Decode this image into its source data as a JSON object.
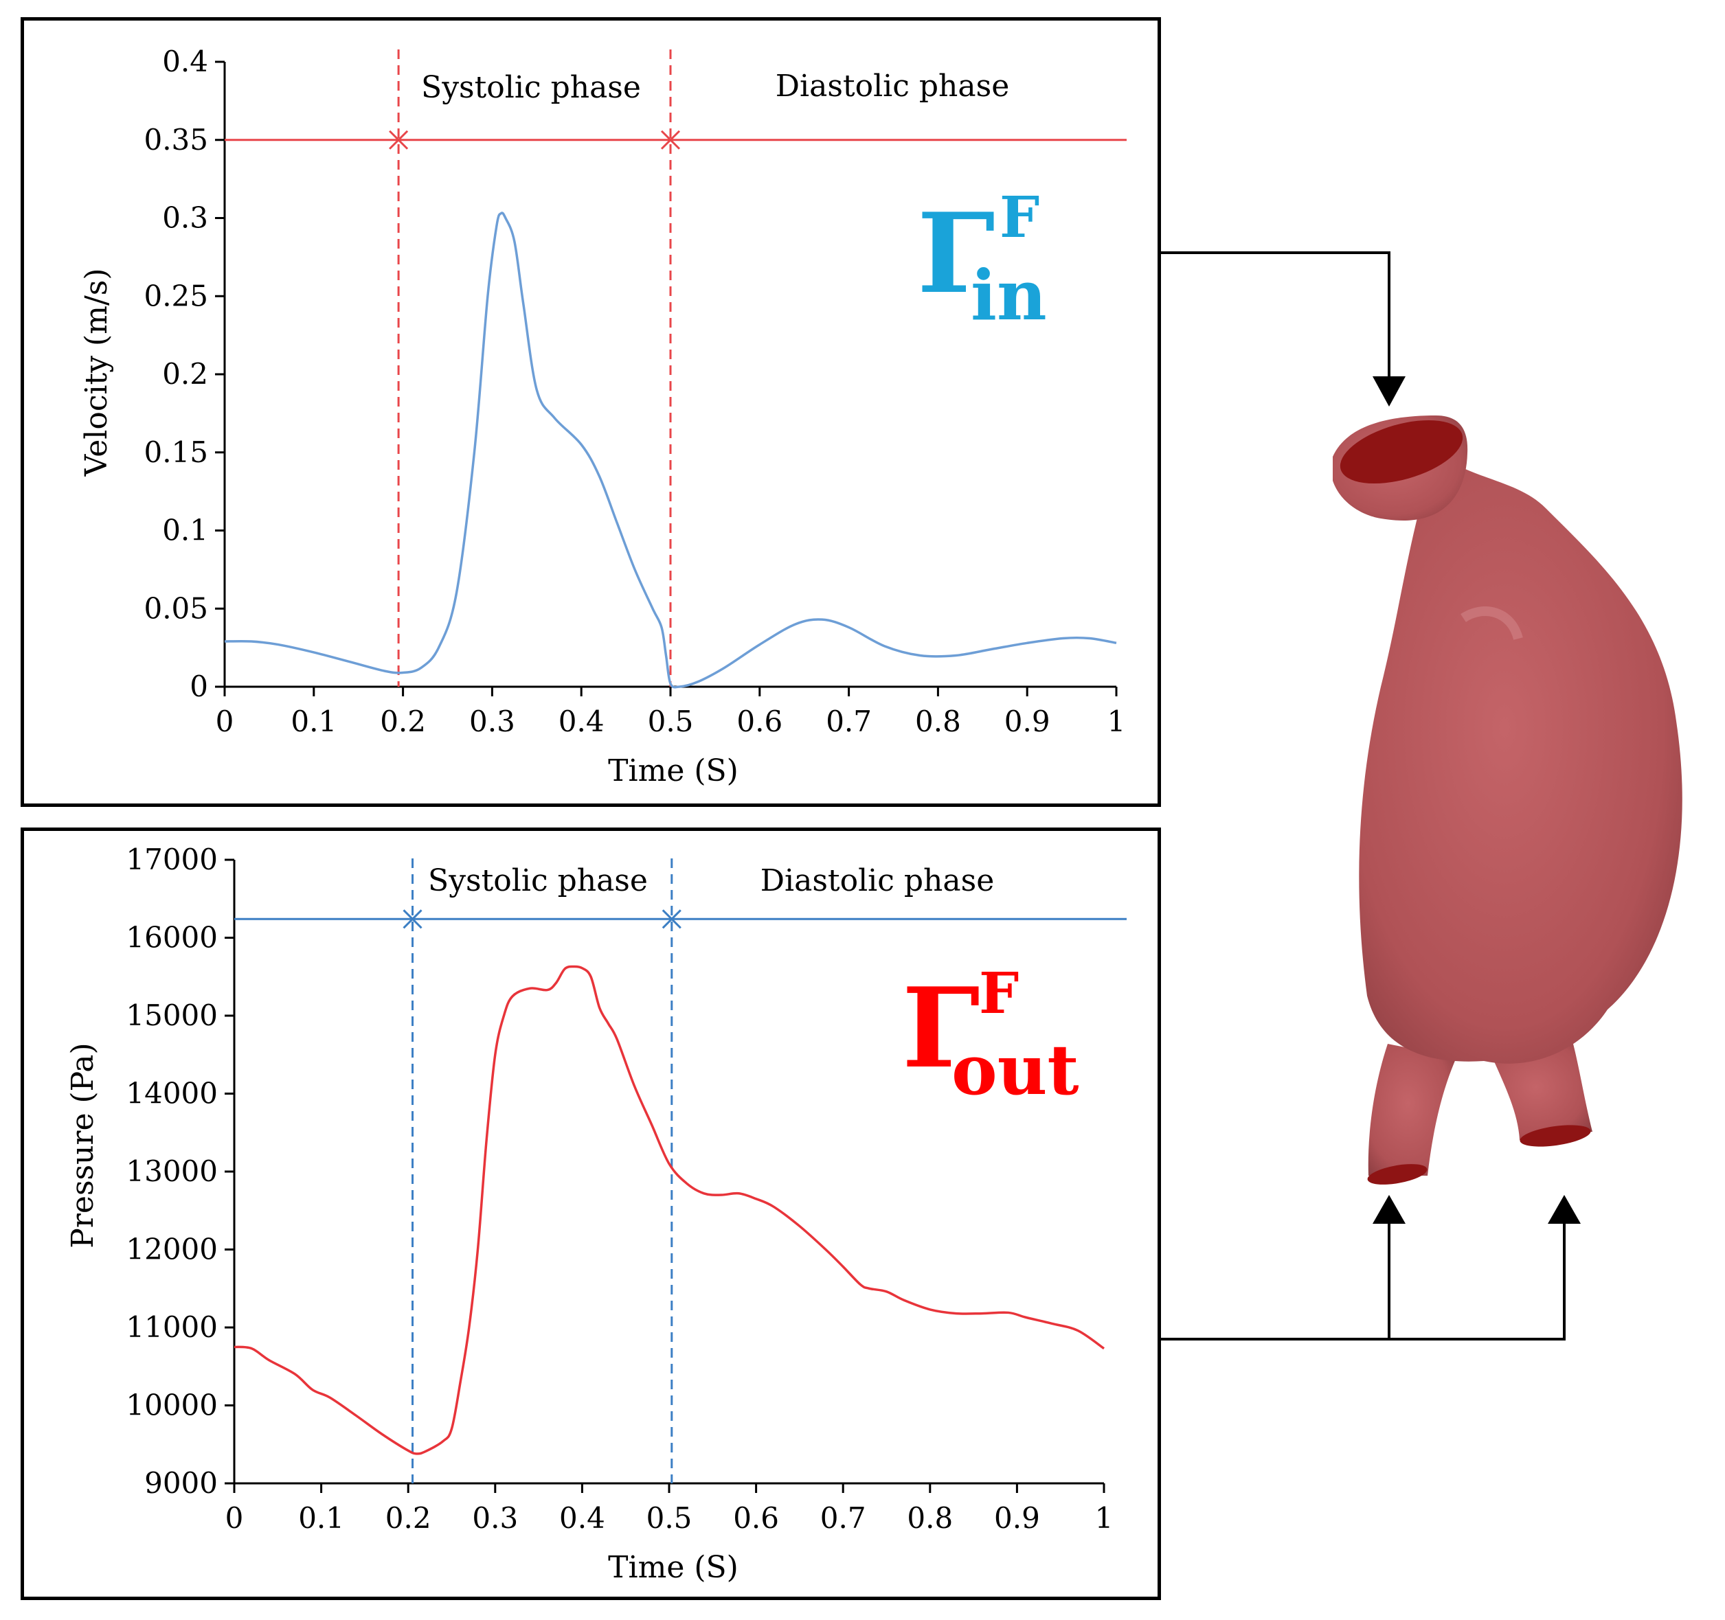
{
  "colors": {
    "velocity_line": "#6d9ed6",
    "velocity_phase": "#e8464a",
    "pressure_line": "#e8343a",
    "pressure_phase": "#3c7fc4",
    "inlet_symbol": "#1aa3d9",
    "outlet_symbol": "#ff0000",
    "aorta_body": "#b8585c",
    "aorta_opening": "#8e1414"
  },
  "labels": {
    "inlet_main": "Γ",
    "inlet_sup": "F",
    "inlet_sub": "in",
    "outlet_main": "Γ",
    "outlet_sup": "F",
    "outlet_sub": "out"
  },
  "chart_data": [
    {
      "type": "line",
      "title": "",
      "xlabel": "Time (S)",
      "ylabel": "Velocity (m/s)",
      "xlim": [
        0,
        1
      ],
      "ylim": [
        0,
        0.4
      ],
      "x_ticks": [
        0,
        0.1,
        0.2,
        0.3,
        0.4,
        0.5,
        0.6,
        0.7,
        0.8,
        0.9,
        1
      ],
      "x_tick_labels": [
        "0",
        "0.1",
        "0.2",
        "0.3",
        "0.4",
        "0.5",
        "0.6",
        "0.7",
        "0.8",
        "0.9",
        "1"
      ],
      "y_ticks": [
        0,
        0.05,
        0.1,
        0.15,
        0.2,
        0.25,
        0.3,
        0.35,
        0.4
      ],
      "y_tick_labels": [
        "0",
        "0.05",
        "0.1",
        "0.15",
        "0.2",
        "0.25",
        "0.3",
        "0.35",
        "0.4"
      ],
      "phase_bounds": [
        0.195,
        0.5
      ],
      "phase_level": 0.35,
      "phase_labels": [
        "Systolic phase",
        "Diastolic phase"
      ],
      "grid": false,
      "series": [
        {
          "x": [
            0,
            0.03,
            0.06,
            0.1,
            0.14,
            0.18,
            0.2,
            0.22,
            0.24,
            0.26,
            0.28,
            0.295,
            0.305,
            0.31,
            0.315,
            0.325,
            0.335,
            0.35,
            0.37,
            0.4,
            0.42,
            0.44,
            0.46,
            0.48,
            0.49,
            0.495,
            0.5,
            0.51,
            0.53,
            0.56,
            0.6,
            0.64,
            0.67,
            0.7,
            0.74,
            0.78,
            0.82,
            0.86,
            0.9,
            0.94,
            0.97,
            1
          ],
          "y": [
            0.029,
            0.029,
            0.027,
            0.022,
            0.016,
            0.01,
            0.009,
            0.012,
            0.025,
            0.06,
            0.15,
            0.25,
            0.295,
            0.303,
            0.3,
            0.285,
            0.245,
            0.19,
            0.172,
            0.155,
            0.135,
            0.105,
            0.075,
            0.05,
            0.038,
            0.02,
            0.002,
            0.0,
            0.003,
            0.012,
            0.027,
            0.04,
            0.043,
            0.038,
            0.026,
            0.02,
            0.02,
            0.024,
            0.028,
            0.031,
            0.031,
            0.028
          ]
        }
      ]
    },
    {
      "type": "line",
      "title": "",
      "xlabel": "Time (S)",
      "ylabel": "Pressure (Pa)",
      "xlim": [
        0,
        1
      ],
      "ylim": [
        9000,
        17000
      ],
      "x_ticks": [
        0,
        0.1,
        0.2,
        0.3,
        0.4,
        0.5,
        0.6,
        0.7,
        0.8,
        0.9,
        1
      ],
      "x_tick_labels": [
        "0",
        "0.1",
        "0.2",
        "0.3",
        "0.4",
        "0.5",
        "0.6",
        "0.7",
        "0.8",
        "0.9",
        "1"
      ],
      "y_ticks": [
        9000,
        10000,
        11000,
        12000,
        13000,
        14000,
        15000,
        16000,
        17000
      ],
      "y_tick_labels": [
        "9000",
        "10000",
        "11000",
        "12000",
        "13000",
        "14000",
        "15000",
        "16000",
        "17000"
      ],
      "phase_bounds": [
        0.205,
        0.503
      ],
      "phase_level": 16240,
      "phase_labels": [
        "Systolic phase",
        "Diastolic phase"
      ],
      "grid": false,
      "series": [
        {
          "x": [
            0,
            0.02,
            0.04,
            0.07,
            0.09,
            0.11,
            0.14,
            0.17,
            0.2,
            0.21,
            0.22,
            0.24,
            0.25,
            0.26,
            0.27,
            0.28,
            0.29,
            0.3,
            0.31,
            0.32,
            0.34,
            0.36,
            0.37,
            0.38,
            0.39,
            0.4,
            0.41,
            0.42,
            0.43,
            0.44,
            0.46,
            0.48,
            0.5,
            0.52,
            0.54,
            0.56,
            0.58,
            0.6,
            0.62,
            0.65,
            0.68,
            0.7,
            0.72,
            0.73,
            0.75,
            0.77,
            0.8,
            0.83,
            0.86,
            0.89,
            0.91,
            0.94,
            0.97,
            1
          ],
          "y": [
            10750,
            10730,
            10580,
            10400,
            10200,
            10100,
            9870,
            9630,
            9420,
            9380,
            9410,
            9540,
            9700,
            10300,
            11000,
            12000,
            13400,
            14500,
            15000,
            15250,
            15350,
            15330,
            15420,
            15600,
            15630,
            15610,
            15500,
            15100,
            14900,
            14700,
            14100,
            13600,
            13100,
            12850,
            12720,
            12700,
            12720,
            12650,
            12550,
            12300,
            12000,
            11780,
            11550,
            11500,
            11460,
            11350,
            11230,
            11180,
            11180,
            11190,
            11130,
            11050,
            10960,
            10730
          ]
        }
      ]
    }
  ]
}
